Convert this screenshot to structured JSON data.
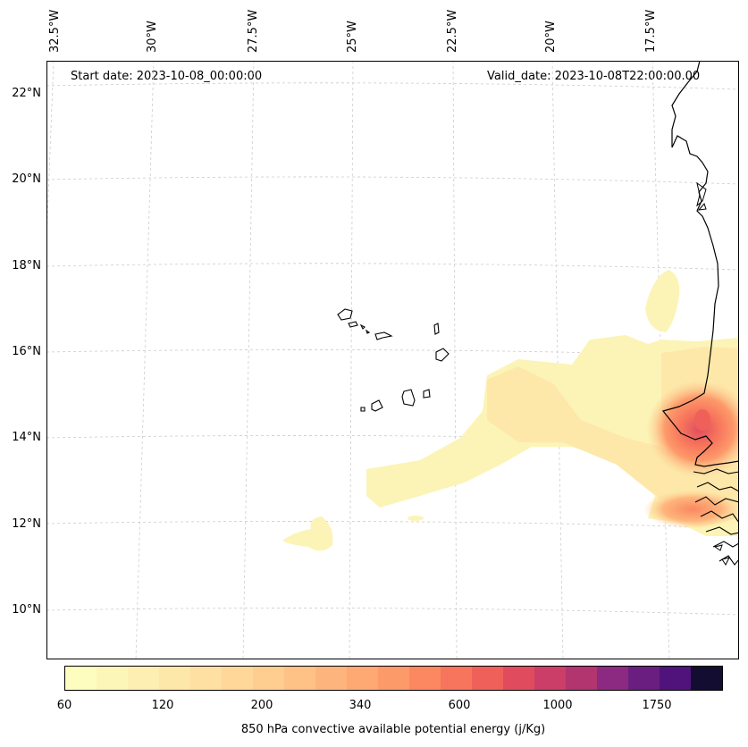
{
  "header": {
    "start_date": "Start date: 2023-10-08_00:00:00",
    "valid_date": "Valid_date: 2023-10-08T22:00:00.00"
  },
  "map": {
    "longitude_labels": [
      "32.5°W",
      "30°W",
      "27.5°W",
      "25°W",
      "22.5°W",
      "20°W",
      "17.5°W"
    ],
    "latitude_labels": [
      "22°N",
      "20°N",
      "18°N",
      "16°N",
      "14°N",
      "12°N",
      "10°N"
    ],
    "gridlines": true,
    "field": "850 hPa convective available potential energy",
    "features": [
      "West African coastline",
      "Cape Verde islands"
    ]
  },
  "colorbar": {
    "label": "850 hPa convective available potential energy (j/Kg)",
    "tick_labels": [
      "60",
      "120",
      "200",
      "340",
      "600",
      "1000",
      "1750"
    ],
    "colors": [
      "#fcfdbf",
      "#fcf6b8",
      "#fcefb1",
      "#fde8aa",
      "#fde0a2",
      "#fed799",
      "#fecd90",
      "#fec287",
      "#feb57d",
      "#fea873",
      "#fd9a6a",
      "#fb8861",
      "#f7755c",
      "#ef605a",
      "#e04c5e",
      "#cb3e68",
      "#b2356f",
      "#8c2981",
      "#6a1f80",
      "#50127b",
      "#120d31"
    ]
  }
}
